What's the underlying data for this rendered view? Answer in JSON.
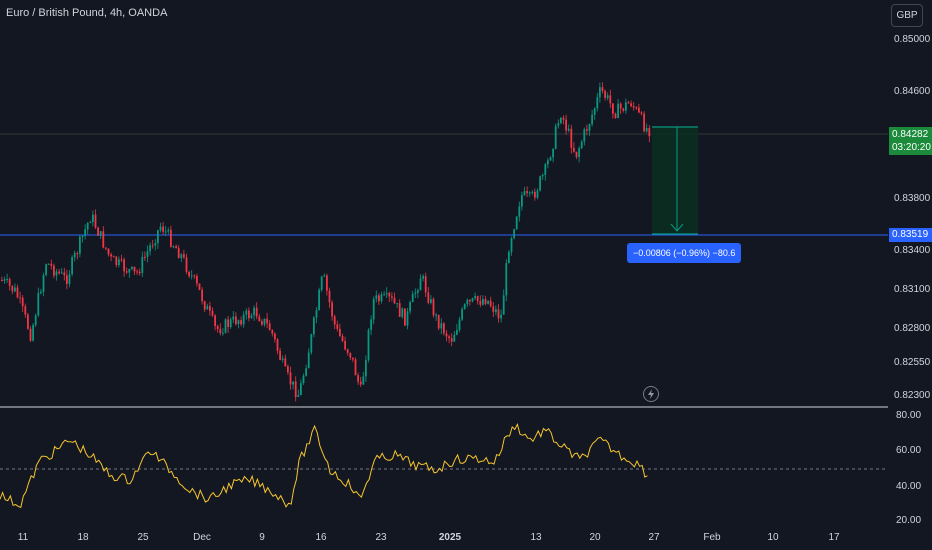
{
  "header": {
    "title": "Euro / British Pound, 4h, OANDA",
    "currency_button": "GBP"
  },
  "price_axis": {
    "ticks": [
      "0.85000",
      "0.84600",
      "0.83800",
      "0.83400",
      "0.83100",
      "0.82800",
      "0.82550",
      "0.82300"
    ]
  },
  "last_price": {
    "value": "0.84282",
    "countdown": "03:20:20",
    "color": "#1b8a3a"
  },
  "horizontal_line": {
    "value": "0.83519",
    "color": "#2962ff"
  },
  "measure": {
    "label": "−0.00806 (−0.96%) −80.6",
    "color": "#089981"
  },
  "oscillator": {
    "ticks": [
      "80.00",
      "60.00",
      "40.00",
      "20.00"
    ],
    "color": "#f7c52d"
  },
  "x_axis": {
    "labels": [
      "11",
      "18",
      "25",
      "Dec",
      "9",
      "16",
      "23",
      "2025",
      "13",
      "20",
      "27",
      "Feb",
      "10",
      "17"
    ]
  },
  "colors": {
    "background": "#131722",
    "up_candle": "#089981",
    "down_candle": "#f23645"
  },
  "icons": {
    "replay": "lightning-icon"
  }
}
